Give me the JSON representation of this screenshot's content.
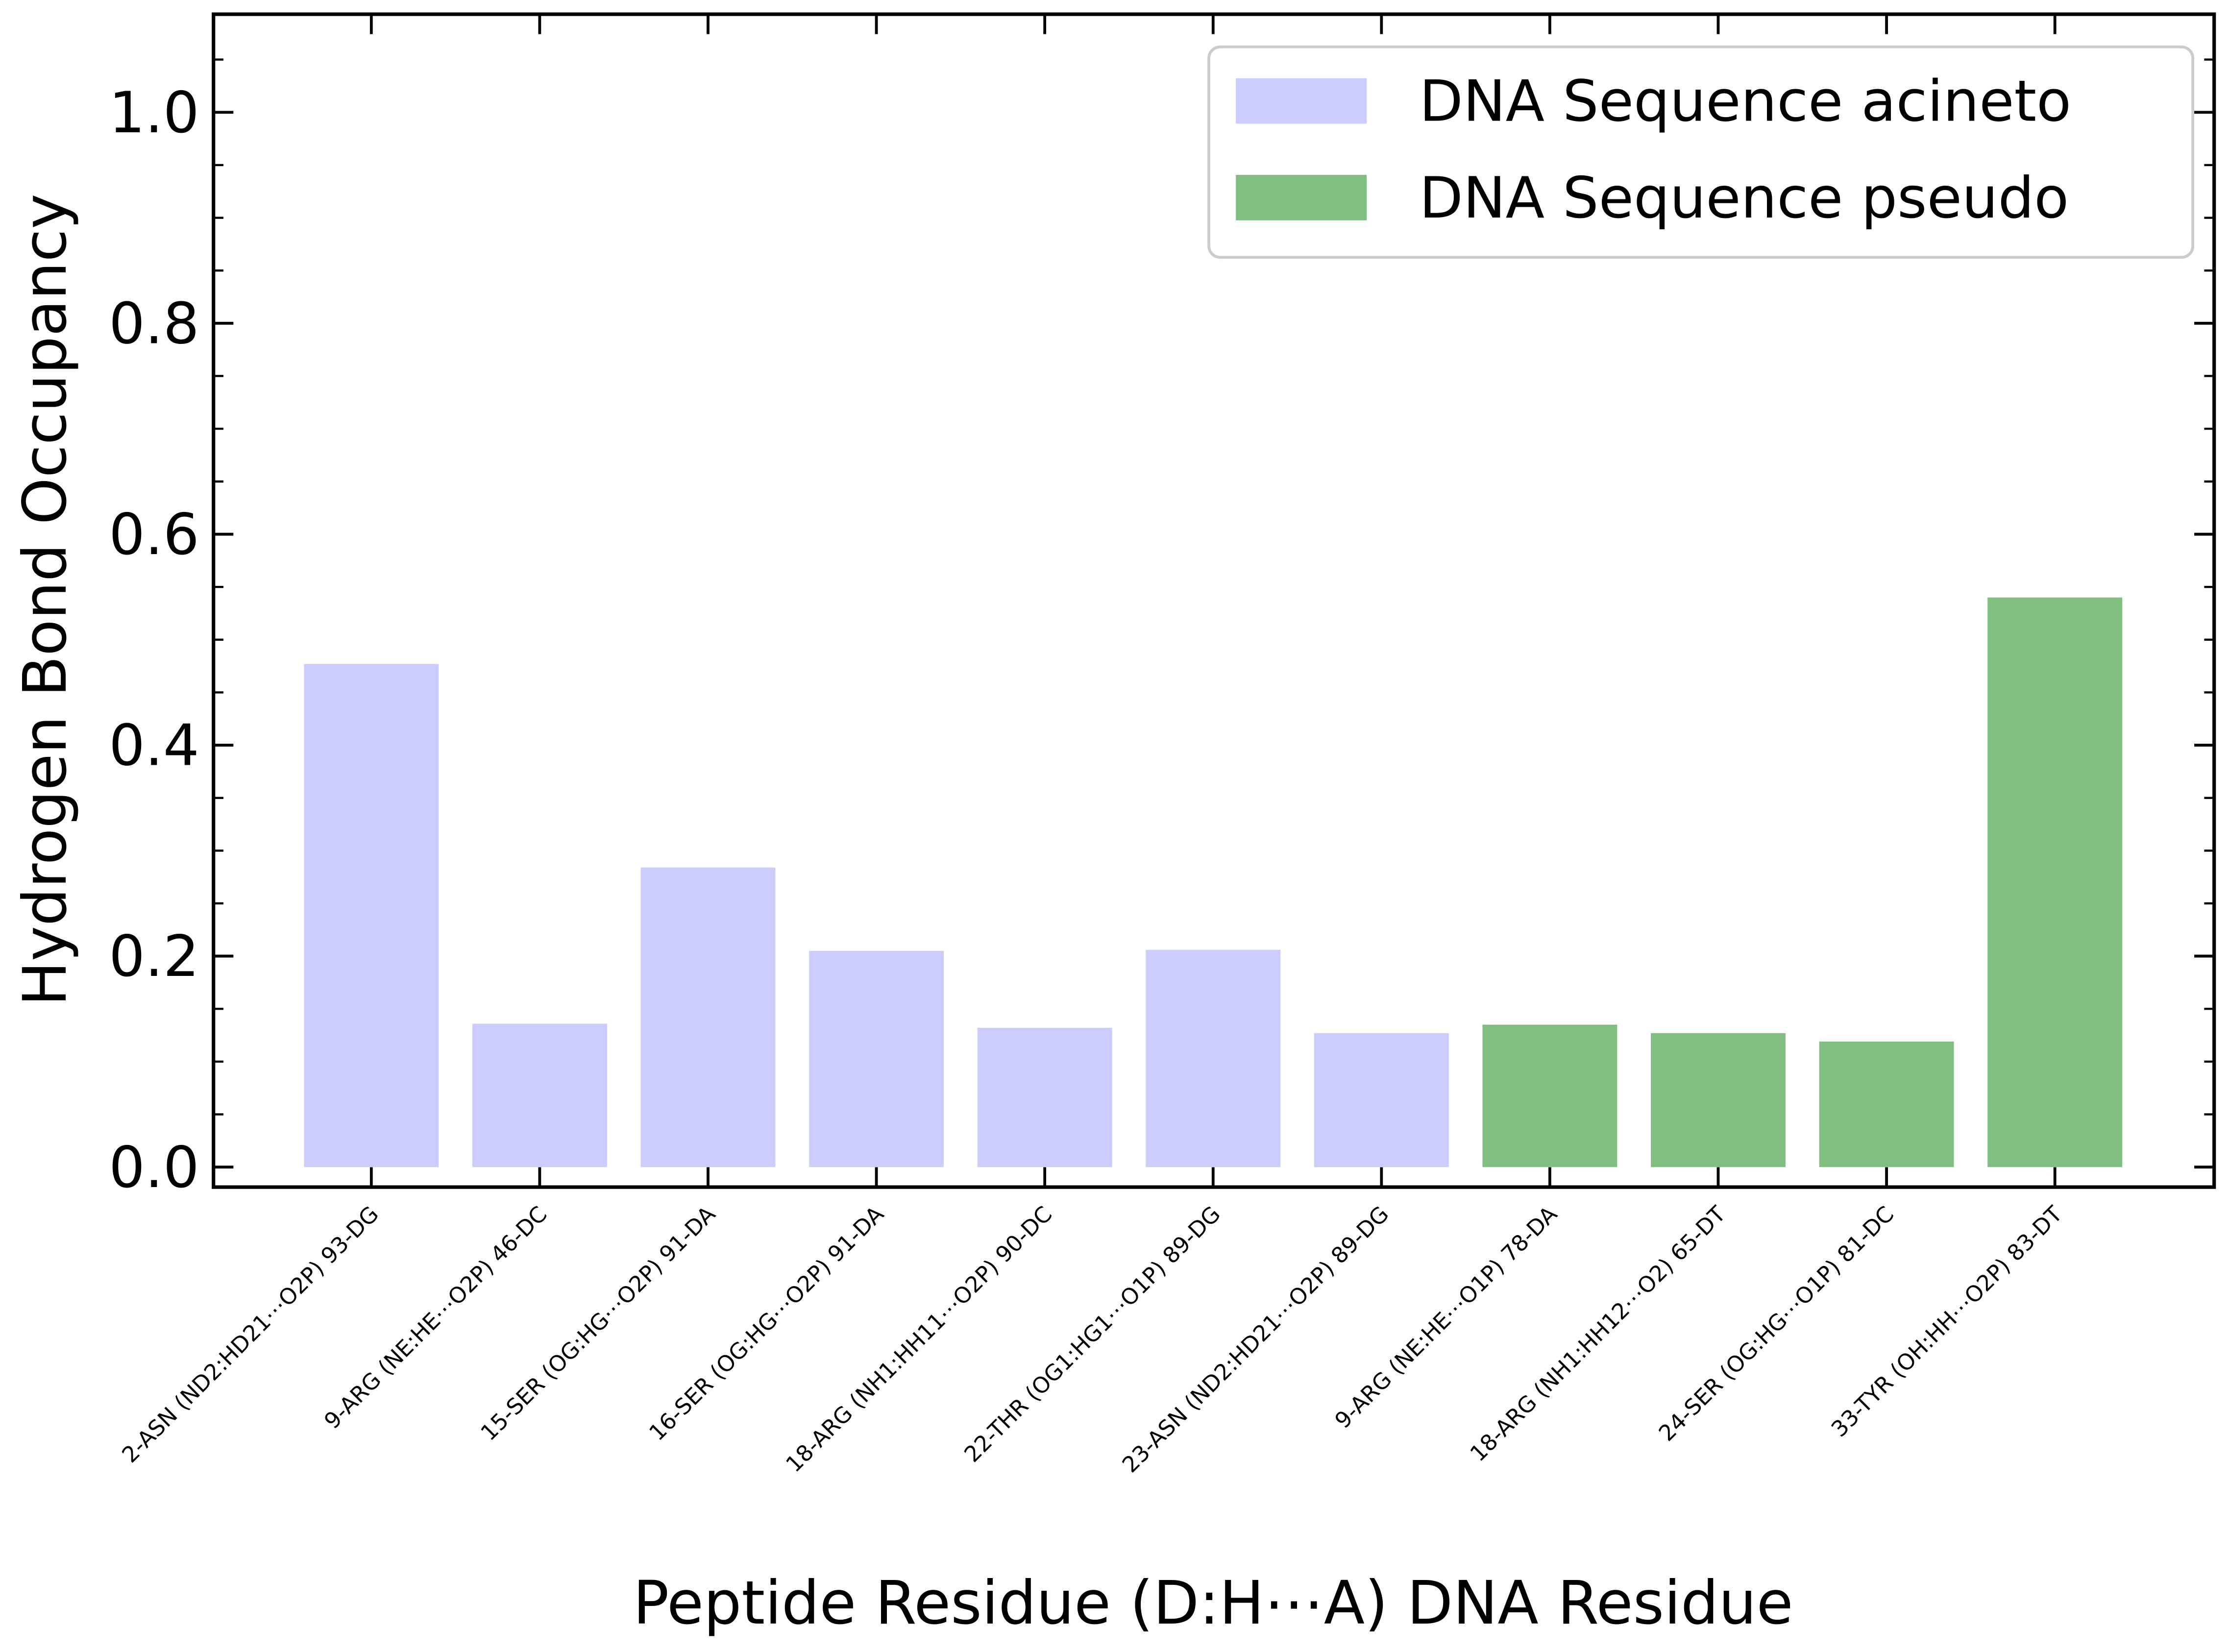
{
  "chart_data": {
    "type": "bar",
    "xlabel": "Peptide Residue (D:H⋯A) DNA Residue",
    "ylabel": "Hydrogen Bond Occupancy",
    "categories": [
      "2-ASN (ND2:HD21⋯O2P) 93-DG",
      "9-ARG (NE:HE⋯O2P) 46-DC",
      "15-SER (OG:HG⋯O2P) 91-DA",
      "16-SER (OG:HG⋯O2P) 91-DA",
      "18-ARG (NH1:HH11⋯O2P) 90-DC",
      "22-THR (OG1:HG1⋯O1P) 89-DG",
      "23-ASN (ND2:HD21⋯O2P) 89-DG",
      "9-ARG (NE:HE⋯O1P) 78-DA",
      "18-ARG (NH1:HH12⋯O2) 65-DT",
      "24-SER (OG:HG⋯O1P) 81-DC",
      "33-TYR (OH:HH⋯O2P) 83-DT"
    ],
    "series": [
      {
        "name": "DNA Sequence acineto",
        "color": "#ccccff",
        "values": [
          0.477,
          0.136,
          0.284,
          0.205,
          0.132,
          0.206,
          0.127,
          null,
          null,
          null,
          null
        ]
      },
      {
        "name": "DNA Sequence pseudo",
        "color": "#80bf80",
        "values": [
          null,
          null,
          null,
          null,
          null,
          null,
          null,
          0.135,
          0.127,
          0.119,
          0.54
        ]
      }
    ],
    "ylim": [
      -0.019,
      1.093
    ],
    "yticks": [
      {
        "value": 0,
        "label": "0.0"
      },
      0.2,
      0.4,
      0.6,
      0.8,
      {
        "value": 1,
        "label": "1.0"
      }
    ],
    "yminorticks": [
      0.05,
      0.1,
      0.15,
      0.25,
      0.3,
      0.35,
      0.45,
      0.5,
      0.55,
      0.65,
      0.7,
      0.75,
      0.85,
      0.9,
      0.95,
      1.05
    ],
    "legend": "upper right",
    "grid": false
  }
}
